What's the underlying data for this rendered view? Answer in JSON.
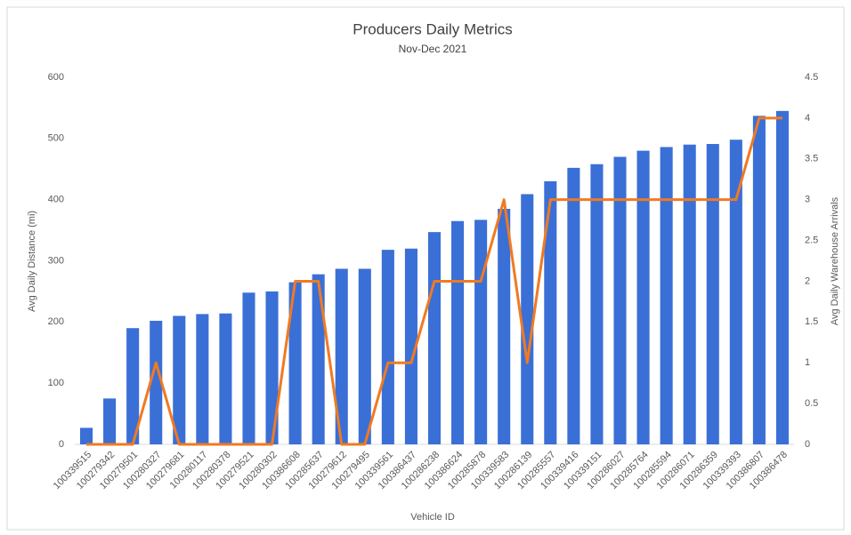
{
  "chart_data": {
    "type": "bar_line",
    "title": "Producers Daily Metrics",
    "subtitle": "Nov-Dec 2021",
    "x_label": "Vehicle ID",
    "y_label": "Avg Daily Distance (mi)",
    "y2_label": "Avg Daily  Warehouse Arrivals",
    "categories": [
      "100339515",
      "100279342",
      "100279501",
      "100280327",
      "100279681",
      "100280117",
      "100280378",
      "100279521",
      "100280302",
      "100386608",
      "100285637",
      "100279612",
      "100279495",
      "100339561",
      "100386437",
      "100286238",
      "100386624",
      "100285878",
      "100339583",
      "100286139",
      "100285557",
      "100339416",
      "100339151",
      "100286027",
      "100285764",
      "100285594",
      "100286071",
      "100286359",
      "100339393",
      "100386807",
      "100386478"
    ],
    "series": [
      {
        "type": "bar",
        "color": "#3a6fd6",
        "values": [
          27,
          75,
          190,
          202,
          210,
          213,
          214,
          248,
          250,
          265,
          278,
          287,
          287,
          318,
          320,
          347,
          365,
          367,
          385,
          409,
          430,
          452,
          458,
          470,
          480,
          486,
          490,
          491,
          498,
          537,
          545
        ]
      },
      {
        "type": "line",
        "axis": "y2",
        "color": "#f07a22",
        "values": [
          0,
          0,
          0,
          1,
          0,
          0,
          0,
          0,
          0,
          2,
          2,
          0,
          0,
          1,
          1,
          2,
          2,
          2,
          3,
          1,
          3,
          3,
          3,
          3,
          3,
          3,
          3,
          3,
          3,
          4,
          4
        ]
      }
    ],
    "ylim": [
      0,
      600
    ],
    "yticks": [
      0,
      100,
      200,
      300,
      400,
      500,
      600
    ],
    "y2lim": [
      0,
      4.5
    ],
    "y2ticks": [
      0,
      0.5,
      1,
      1.5,
      2,
      2.5,
      3,
      3.5,
      4,
      4.5
    ],
    "grid": false
  }
}
